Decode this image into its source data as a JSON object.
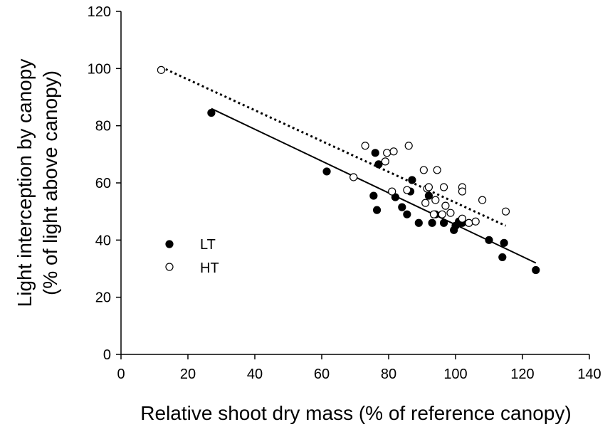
{
  "chart_data": {
    "type": "scatter",
    "title": "",
    "xlabel": "Relative shoot dry mass (% of reference canopy)",
    "ylabel_line1": "Light interception by canopy",
    "ylabel_line2": "(% of light above canopy)",
    "xlim": [
      0,
      140
    ],
    "ylim": [
      0,
      120
    ],
    "xticks": [
      0,
      20,
      40,
      60,
      80,
      100,
      120,
      140
    ],
    "yticks": [
      0,
      20,
      40,
      60,
      80,
      100,
      120
    ],
    "xtick_labels": [
      "0",
      "20",
      "40",
      "60",
      "80",
      "100",
      "120",
      "140"
    ],
    "ytick_labels": [
      "0",
      "20",
      "40",
      "60",
      "80",
      "100",
      "120"
    ],
    "grid": false,
    "legend_position": "lower-left",
    "series": [
      {
        "name": "LT",
        "marker": "filled-circle",
        "color": "#000000",
        "points": [
          [
            27,
            84.5
          ],
          [
            61.5,
            64
          ],
          [
            75.5,
            55.5
          ],
          [
            76,
            70.5
          ],
          [
            76.5,
            50.5
          ],
          [
            77,
            66.5
          ],
          [
            82,
            55
          ],
          [
            84,
            51.5
          ],
          [
            85.5,
            49
          ],
          [
            86.5,
            57
          ],
          [
            87,
            61
          ],
          [
            89,
            46
          ],
          [
            92,
            55.5
          ],
          [
            93,
            46
          ],
          [
            94,
            49
          ],
          [
            96.5,
            46
          ],
          [
            99.5,
            43.5
          ],
          [
            100,
            45
          ],
          [
            101,
            46.5
          ],
          [
            102,
            46
          ],
          [
            110,
            40
          ],
          [
            114,
            34
          ],
          [
            114.5,
            39
          ],
          [
            124,
            29.5
          ]
        ],
        "fit_line": {
          "style": "solid",
          "x": [
            27,
            124
          ],
          "y": [
            86,
            32
          ]
        }
      },
      {
        "name": "HT",
        "marker": "open-circle",
        "color": "#000000",
        "points": [
          [
            12,
            99.5
          ],
          [
            69.5,
            62
          ],
          [
            73,
            73
          ],
          [
            79,
            67.5
          ],
          [
            79.5,
            70.5
          ],
          [
            81,
            57
          ],
          [
            81.5,
            71
          ],
          [
            85.5,
            57.5
          ],
          [
            86,
            73
          ],
          [
            90.5,
            64.5
          ],
          [
            91,
            53
          ],
          [
            91.5,
            58
          ],
          [
            92,
            58.5
          ],
          [
            93.5,
            49
          ],
          [
            94,
            54
          ],
          [
            94.5,
            64.5
          ],
          [
            96,
            49
          ],
          [
            96.5,
            58.5
          ],
          [
            97,
            52
          ],
          [
            98.5,
            49.5
          ],
          [
            102,
            47.5
          ],
          [
            102,
            58.5
          ],
          [
            102,
            57
          ],
          [
            104,
            46
          ],
          [
            106,
            46.5
          ],
          [
            108,
            54
          ],
          [
            115,
            50
          ]
        ],
        "fit_line": {
          "style": "dotted",
          "x": [
            12,
            115
          ],
          "y": [
            100.5,
            45
          ]
        }
      }
    ]
  }
}
